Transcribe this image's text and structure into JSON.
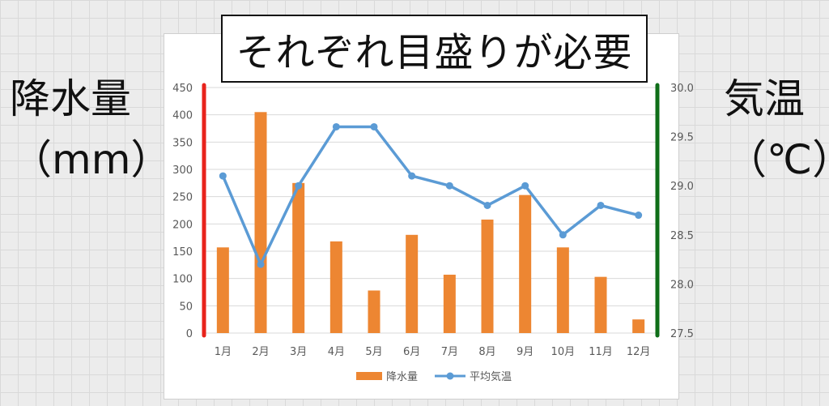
{
  "title": "それぞれ目盛りが必要",
  "left_axis_label": {
    "line1": "降水量",
    "line2": "（mm）"
  },
  "right_axis_label": {
    "line1": "気温",
    "line2": "（℃）"
  },
  "colors": {
    "bars": "#ed8632",
    "line": "#5b9bd5",
    "left_axis_accent": "#e8231c",
    "right_axis_accent": "#0f6e19",
    "grid": "#d9d9d9"
  },
  "chart_data": {
    "type": "bar",
    "categories": [
      "1月",
      "2月",
      "3月",
      "4月",
      "5月",
      "6月",
      "7月",
      "8月",
      "9月",
      "10月",
      "11月",
      "12月"
    ],
    "series": [
      {
        "name": "降水量",
        "type": "bar",
        "axis": "left",
        "values": [
          157,
          405,
          275,
          168,
          78,
          180,
          107,
          208,
          253,
          157,
          103,
          25
        ]
      },
      {
        "name": "平均気温",
        "type": "line",
        "axis": "right",
        "values": [
          29.1,
          28.2,
          29.0,
          29.6,
          29.6,
          29.1,
          29.0,
          28.8,
          29.0,
          28.5,
          28.8,
          28.7
        ]
      }
    ],
    "y_left": {
      "range": [
        0,
        450
      ],
      "ticks": [
        "0",
        "50",
        "100",
        "150",
        "200",
        "250",
        "300",
        "350",
        "400",
        "450"
      ]
    },
    "y_right": {
      "range": [
        27.5,
        30.0
      ],
      "ticks": [
        "27.5",
        "28.0",
        "28.5",
        "29.0",
        "29.5",
        "30.0"
      ]
    },
    "grid": true,
    "legend_position": "bottom"
  }
}
